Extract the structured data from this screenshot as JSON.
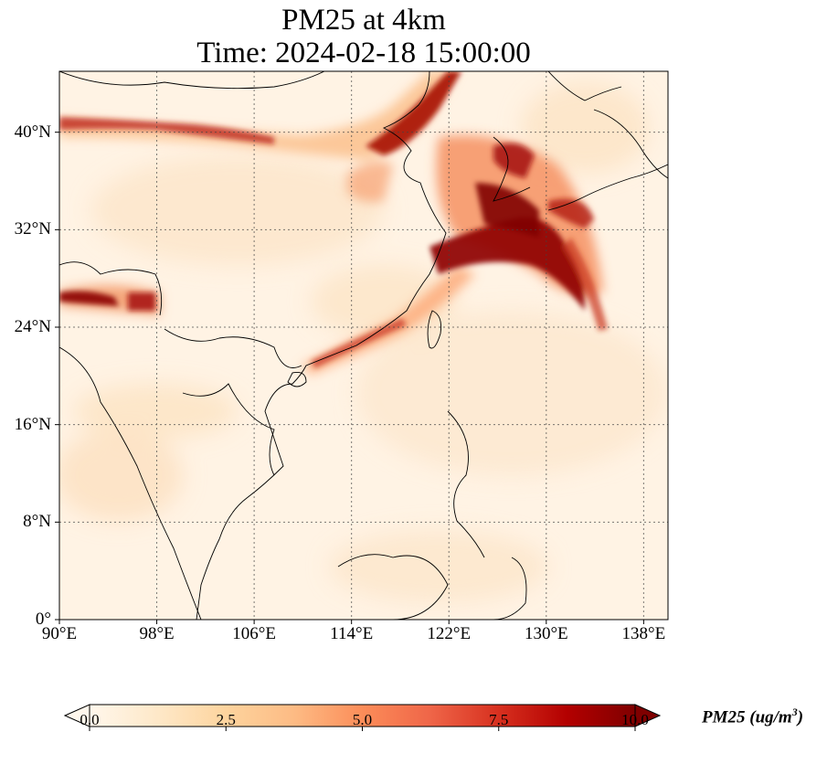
{
  "title_line1": "PM25 at 4km",
  "title_line2": "Time: 2024-02-18 15:00:00",
  "map": {
    "lon_range": [
      90,
      140
    ],
    "lat_range": [
      0,
      45
    ],
    "lon_ticks": [
      {
        "value": 90,
        "label": "90°E"
      },
      {
        "value": 98,
        "label": "98°E"
      },
      {
        "value": 106,
        "label": "106°E"
      },
      {
        "value": 114,
        "label": "114°E"
      },
      {
        "value": 122,
        "label": "122°E"
      },
      {
        "value": 130,
        "label": "130°E"
      },
      {
        "value": 138,
        "label": "138°E"
      }
    ],
    "lat_ticks": [
      {
        "value": 0,
        "label": "0°"
      },
      {
        "value": 8,
        "label": "8°N"
      },
      {
        "value": 16,
        "label": "16°N"
      },
      {
        "value": 24,
        "label": "24°N"
      },
      {
        "value": 32,
        "label": "32°N"
      },
      {
        "value": 40,
        "label": "40°N"
      }
    ],
    "gridlines": true,
    "gridline_style": "dotted",
    "variable": "PM25",
    "level": "4km"
  },
  "colorbar": {
    "label_text": "PM25 (ug/m",
    "label_sup": "3",
    "label_close": ")",
    "min": 0.0,
    "max": 10.0,
    "extend": "both",
    "colormap": "OrRd",
    "colors": [
      "#fff7ec",
      "#fee8c8",
      "#fdd49e",
      "#fdbb84",
      "#fc8d59",
      "#ef6548",
      "#d7301f",
      "#b30000",
      "#7f0000"
    ],
    "ticks": [
      {
        "value": 0.0,
        "label": "0.0"
      },
      {
        "value": 2.5,
        "label": "2.5"
      },
      {
        "value": 5.0,
        "label": "5.0"
      },
      {
        "value": 7.5,
        "label": "7.5"
      },
      {
        "value": 10.0,
        "label": "10.0"
      }
    ]
  }
}
